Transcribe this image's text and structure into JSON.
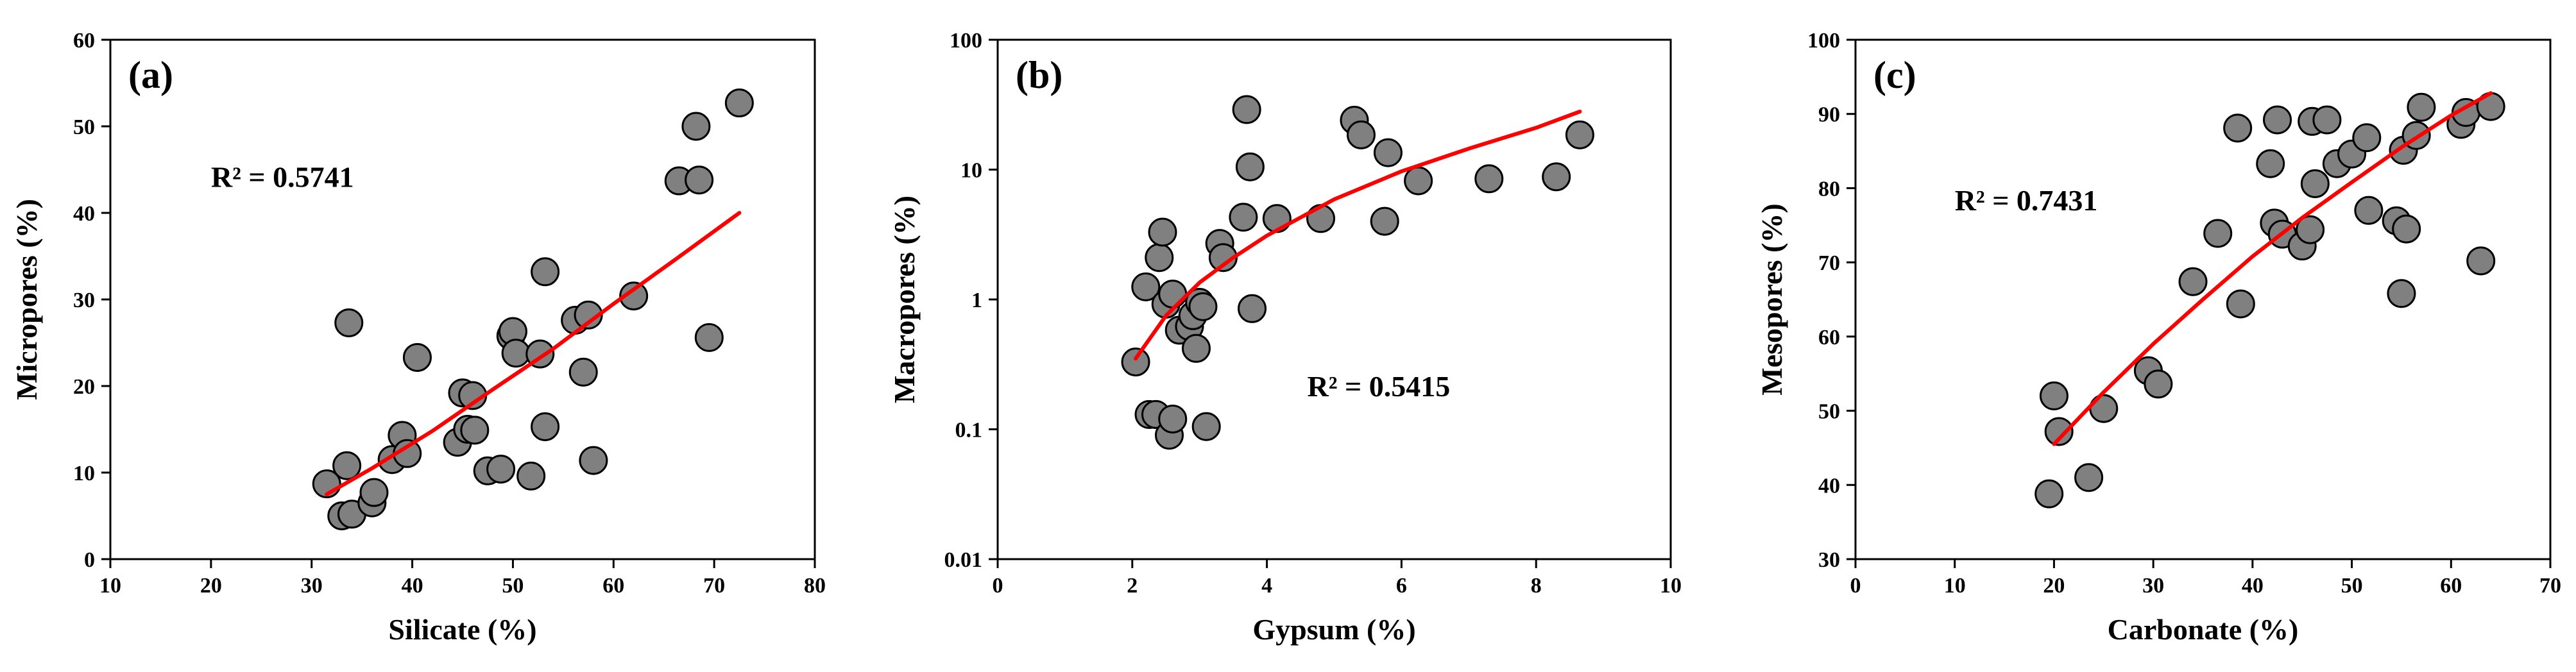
{
  "chart_data": [
    {
      "type": "scatter",
      "panel_label": "(a)",
      "xlabel": "Silicate (%)",
      "ylabel": "Micropores (%)",
      "xlim": [
        10,
        80
      ],
      "ylim": [
        0,
        60
      ],
      "y_scale": "linear",
      "x_ticks": [
        10,
        20,
        30,
        40,
        50,
        60,
        70,
        80
      ],
      "y_ticks": [
        0,
        10,
        20,
        30,
        40,
        50,
        60
      ],
      "x_tick_labels": [
        "10",
        "20",
        "30",
        "40",
        "50",
        "60",
        "70",
        "80"
      ],
      "y_tick_labels": [
        "0",
        "10",
        "20",
        "30",
        "40",
        "50",
        "60"
      ],
      "annotation": "R² = 0.5741",
      "annotation_data_pos": [
        20,
        43
      ],
      "marker_color": "#808080",
      "fit_color": "#ff0000",
      "fit_x": [
        31.5,
        36,
        42,
        48,
        54,
        60,
        66,
        72.5
      ],
      "fit_y": [
        7.5,
        10.5,
        14.8,
        19.6,
        24.3,
        29.5,
        34.5,
        40.0
      ],
      "points": [
        [
          31.5,
          8.7
        ],
        [
          33,
          5
        ],
        [
          33.5,
          10.8
        ],
        [
          33.7,
          27.3
        ],
        [
          34,
          5.2
        ],
        [
          36,
          6.5
        ],
        [
          36.2,
          7.7
        ],
        [
          38,
          11.5
        ],
        [
          39,
          14.3
        ],
        [
          39.5,
          12.2
        ],
        [
          40.5,
          23.3
        ],
        [
          44.5,
          13.5
        ],
        [
          45,
          19.2
        ],
        [
          45.5,
          15
        ],
        [
          46,
          18.9
        ],
        [
          46.2,
          14.9
        ],
        [
          47.5,
          10.2
        ],
        [
          48.8,
          10.4
        ],
        [
          49.8,
          25.8
        ],
        [
          50,
          26.3
        ],
        [
          50.3,
          23.8
        ],
        [
          51.8,
          9.6
        ],
        [
          52.7,
          23.7
        ],
        [
          53.2,
          33.2
        ],
        [
          53.2,
          15.3
        ],
        [
          56.2,
          27.6
        ],
        [
          57,
          21.6
        ],
        [
          57.5,
          28.2
        ],
        [
          58,
          11.4
        ],
        [
          62,
          30.4
        ],
        [
          66.5,
          43.7
        ],
        [
          68.2,
          50
        ],
        [
          68.5,
          43.8
        ],
        [
          69.5,
          25.6
        ],
        [
          72.5,
          52.7
        ]
      ]
    },
    {
      "type": "scatter",
      "panel_label": "(b)",
      "xlabel": "Gypsum (%)",
      "ylabel": "Macropores (%)",
      "xlim": [
        0,
        10
      ],
      "ylim": [
        0.01,
        100
      ],
      "y_scale": "log",
      "x_ticks": [
        0,
        2,
        4,
        6,
        8,
        10
      ],
      "y_ticks": [
        0.01,
        0.1,
        1,
        10,
        100
      ],
      "x_tick_labels": [
        "0",
        "2",
        "4",
        "6",
        "8",
        "10"
      ],
      "y_tick_labels": [
        "0.01",
        "0.1",
        "1",
        "10",
        "100"
      ],
      "annotation": "R² = 0.5415",
      "annotation_data_pos": [
        4.6,
        0.18
      ],
      "marker_color": "#808080",
      "fit_color": "#ff0000",
      "fit_x": [
        2.05,
        2.5,
        3,
        3.5,
        4,
        5,
        6,
        7,
        8,
        8.65
      ],
      "fit_y": [
        0.35,
        0.75,
        1.35,
        2.1,
        3.1,
        5.9,
        9.7,
        14.5,
        21.0,
        28.0
      ],
      "points": [
        [
          2.05,
          0.33
        ],
        [
          2.2,
          1.25
        ],
        [
          2.25,
          0.13
        ],
        [
          2.35,
          0.13
        ],
        [
          2.4,
          2.1
        ],
        [
          2.45,
          3.3
        ],
        [
          2.5,
          0.92
        ],
        [
          2.55,
          0.09
        ],
        [
          2.6,
          0.12
        ],
        [
          2.6,
          1.1
        ],
        [
          2.7,
          0.58
        ],
        [
          2.85,
          0.62
        ],
        [
          2.9,
          0.75
        ],
        [
          2.95,
          0.42
        ],
        [
          3.0,
          0.95
        ],
        [
          3.05,
          0.88
        ],
        [
          3.1,
          0.105
        ],
        [
          3.3,
          2.7
        ],
        [
          3.35,
          2.1
        ],
        [
          3.65,
          4.3
        ],
        [
          3.7,
          29
        ],
        [
          3.75,
          10.5
        ],
        [
          3.78,
          0.85
        ],
        [
          4.15,
          4.2
        ],
        [
          4.8,
          4.2
        ],
        [
          5.3,
          24
        ],
        [
          5.4,
          18.5
        ],
        [
          5.75,
          4.0
        ],
        [
          5.8,
          13.5
        ],
        [
          6.25,
          8.2
        ],
        [
          7.3,
          8.5
        ],
        [
          8.3,
          8.8
        ],
        [
          8.65,
          18.5
        ]
      ]
    },
    {
      "type": "scatter",
      "panel_label": "(c)",
      "xlabel": "Carbonate (%)",
      "ylabel": "Mesopores (%)",
      "xlim": [
        0,
        70
      ],
      "ylim": [
        30,
        100
      ],
      "y_scale": "linear",
      "x_ticks": [
        0,
        10,
        20,
        30,
        40,
        50,
        60,
        70
      ],
      "y_ticks": [
        30,
        40,
        50,
        60,
        70,
        80,
        90,
        100
      ],
      "x_tick_labels": [
        "0",
        "10",
        "20",
        "30",
        "40",
        "50",
        "60",
        "70"
      ],
      "y_tick_labels": [
        "30",
        "40",
        "50",
        "60",
        "70",
        "80",
        "90",
        "100"
      ],
      "annotation": "R² = 0.7431",
      "annotation_data_pos": [
        10,
        77
      ],
      "marker_color": "#808080",
      "fit_color": "#ff0000",
      "fit_x": [
        20,
        25,
        30,
        35,
        40,
        45,
        50,
        55,
        60,
        64
      ],
      "fit_y": [
        45.5,
        52.5,
        59.0,
        65.0,
        70.8,
        76.0,
        80.8,
        85.5,
        89.8,
        92.8
      ],
      "points": [
        [
          19.5,
          38.8
        ],
        [
          20,
          52
        ],
        [
          20.5,
          47.2
        ],
        [
          23.5,
          41
        ],
        [
          25,
          50.3
        ],
        [
          29.5,
          55.4
        ],
        [
          30.5,
          53.6
        ],
        [
          34,
          67.4
        ],
        [
          36.5,
          73.9
        ],
        [
          38.5,
          88.1
        ],
        [
          38.8,
          64.4
        ],
        [
          41.8,
          83.3
        ],
        [
          42.2,
          75.3
        ],
        [
          42.5,
          89.2
        ],
        [
          43,
          73.8
        ],
        [
          45,
          72.2
        ],
        [
          45.8,
          74.4
        ],
        [
          46,
          89
        ],
        [
          46.3,
          80.6
        ],
        [
          47.5,
          89.2
        ],
        [
          48.5,
          83.3
        ],
        [
          50,
          84.6
        ],
        [
          51.5,
          86.8
        ],
        [
          51.7,
          77
        ],
        [
          54.5,
          75.6
        ],
        [
          55,
          65.8
        ],
        [
          55.2,
          85.1
        ],
        [
          55.5,
          74.5
        ],
        [
          56.5,
          87.1
        ],
        [
          57,
          90.9
        ],
        [
          61,
          88.6
        ],
        [
          61.5,
          90.2
        ],
        [
          63,
          70.2
        ],
        [
          64,
          91
        ]
      ]
    }
  ]
}
